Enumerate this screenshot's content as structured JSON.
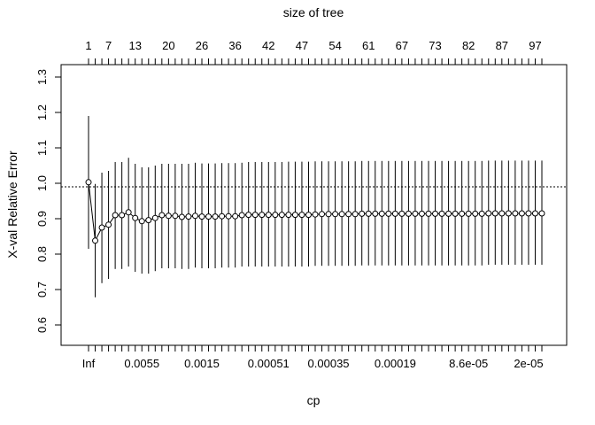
{
  "chart_data": {
    "type": "scatter",
    "subtype": "cross-validation error plot with error bars",
    "title": "",
    "top_axis_label": "size of tree",
    "xlabel": "cp",
    "ylabel": "X-val Relative Error",
    "ylim": [
      0.6,
      1.3
    ],
    "y_ticks": [
      "0.6",
      "0.7",
      "0.8",
      "0.9",
      "1.0",
      "1.1",
      "1.2",
      "1.3"
    ],
    "reference_line_y": 0.99,
    "grid": false,
    "legend": "none",
    "x_tick_labels": [
      "Inf",
      "0.0055",
      "0.0015",
      "0.00051",
      "0.00035",
      "0.00019",
      "8.6e-05",
      "2e-05"
    ],
    "size_tick_labels": [
      "1",
      "7",
      "13",
      "20",
      "26",
      "36",
      "42",
      "47",
      "54",
      "61",
      "67",
      "73",
      "82",
      "87",
      "97"
    ],
    "n_points": 69,
    "xerror": [
      1.003,
      0.838,
      0.875,
      0.883,
      0.91,
      0.91,
      0.918,
      0.902,
      0.893,
      0.896,
      0.902,
      0.91,
      0.908,
      0.908,
      0.905,
      0.906,
      0.908,
      0.906,
      0.906,
      0.906,
      0.907,
      0.907,
      0.907,
      0.91,
      0.911,
      0.911,
      0.911,
      0.911,
      0.911,
      0.911,
      0.911,
      0.911,
      0.911,
      0.911,
      0.912,
      0.913,
      0.913,
      0.913,
      0.913,
      0.913,
      0.913,
      0.914,
      0.914,
      0.914,
      0.914,
      0.914,
      0.914,
      0.914,
      0.914,
      0.914,
      0.914,
      0.914,
      0.914,
      0.914,
      0.914,
      0.914,
      0.914,
      0.914,
      0.914,
      0.914,
      0.915,
      0.915,
      0.915,
      0.915,
      0.915,
      0.915,
      0.915,
      0.915,
      0.915
    ],
    "error_upper": [
      1.19,
      0.998,
      1.03,
      1.035,
      1.06,
      1.06,
      1.072,
      1.055,
      1.045,
      1.045,
      1.05,
      1.055,
      1.055,
      1.055,
      1.055,
      1.055,
      1.058,
      1.056,
      1.056,
      1.056,
      1.057,
      1.057,
      1.057,
      1.058,
      1.06,
      1.06,
      1.06,
      1.06,
      1.06,
      1.06,
      1.061,
      1.061,
      1.061,
      1.061,
      1.062,
      1.062,
      1.062,
      1.062,
      1.062,
      1.062,
      1.062,
      1.063,
      1.063,
      1.063,
      1.063,
      1.063,
      1.063,
      1.063,
      1.063,
      1.063,
      1.063,
      1.063,
      1.063,
      1.063,
      1.063,
      1.063,
      1.063,
      1.063,
      1.063,
      1.063,
      1.064,
      1.064,
      1.064,
      1.064,
      1.064,
      1.064,
      1.064,
      1.064,
      1.064
    ],
    "error_lower": [
      0.815,
      0.678,
      0.718,
      0.73,
      0.758,
      0.758,
      0.765,
      0.75,
      0.745,
      0.745,
      0.752,
      0.76,
      0.76,
      0.76,
      0.758,
      0.758,
      0.762,
      0.76,
      0.76,
      0.76,
      0.762,
      0.762,
      0.762,
      0.765,
      0.765,
      0.765,
      0.765,
      0.765,
      0.765,
      0.765,
      0.765,
      0.765,
      0.765,
      0.765,
      0.767,
      0.767,
      0.767,
      0.767,
      0.767,
      0.767,
      0.767,
      0.768,
      0.768,
      0.768,
      0.768,
      0.768,
      0.768,
      0.768,
      0.768,
      0.768,
      0.768,
      0.768,
      0.768,
      0.768,
      0.768,
      0.768,
      0.768,
      0.768,
      0.768,
      0.768,
      0.77,
      0.77,
      0.77,
      0.77,
      0.77,
      0.77,
      0.77,
      0.77,
      0.77
    ]
  }
}
